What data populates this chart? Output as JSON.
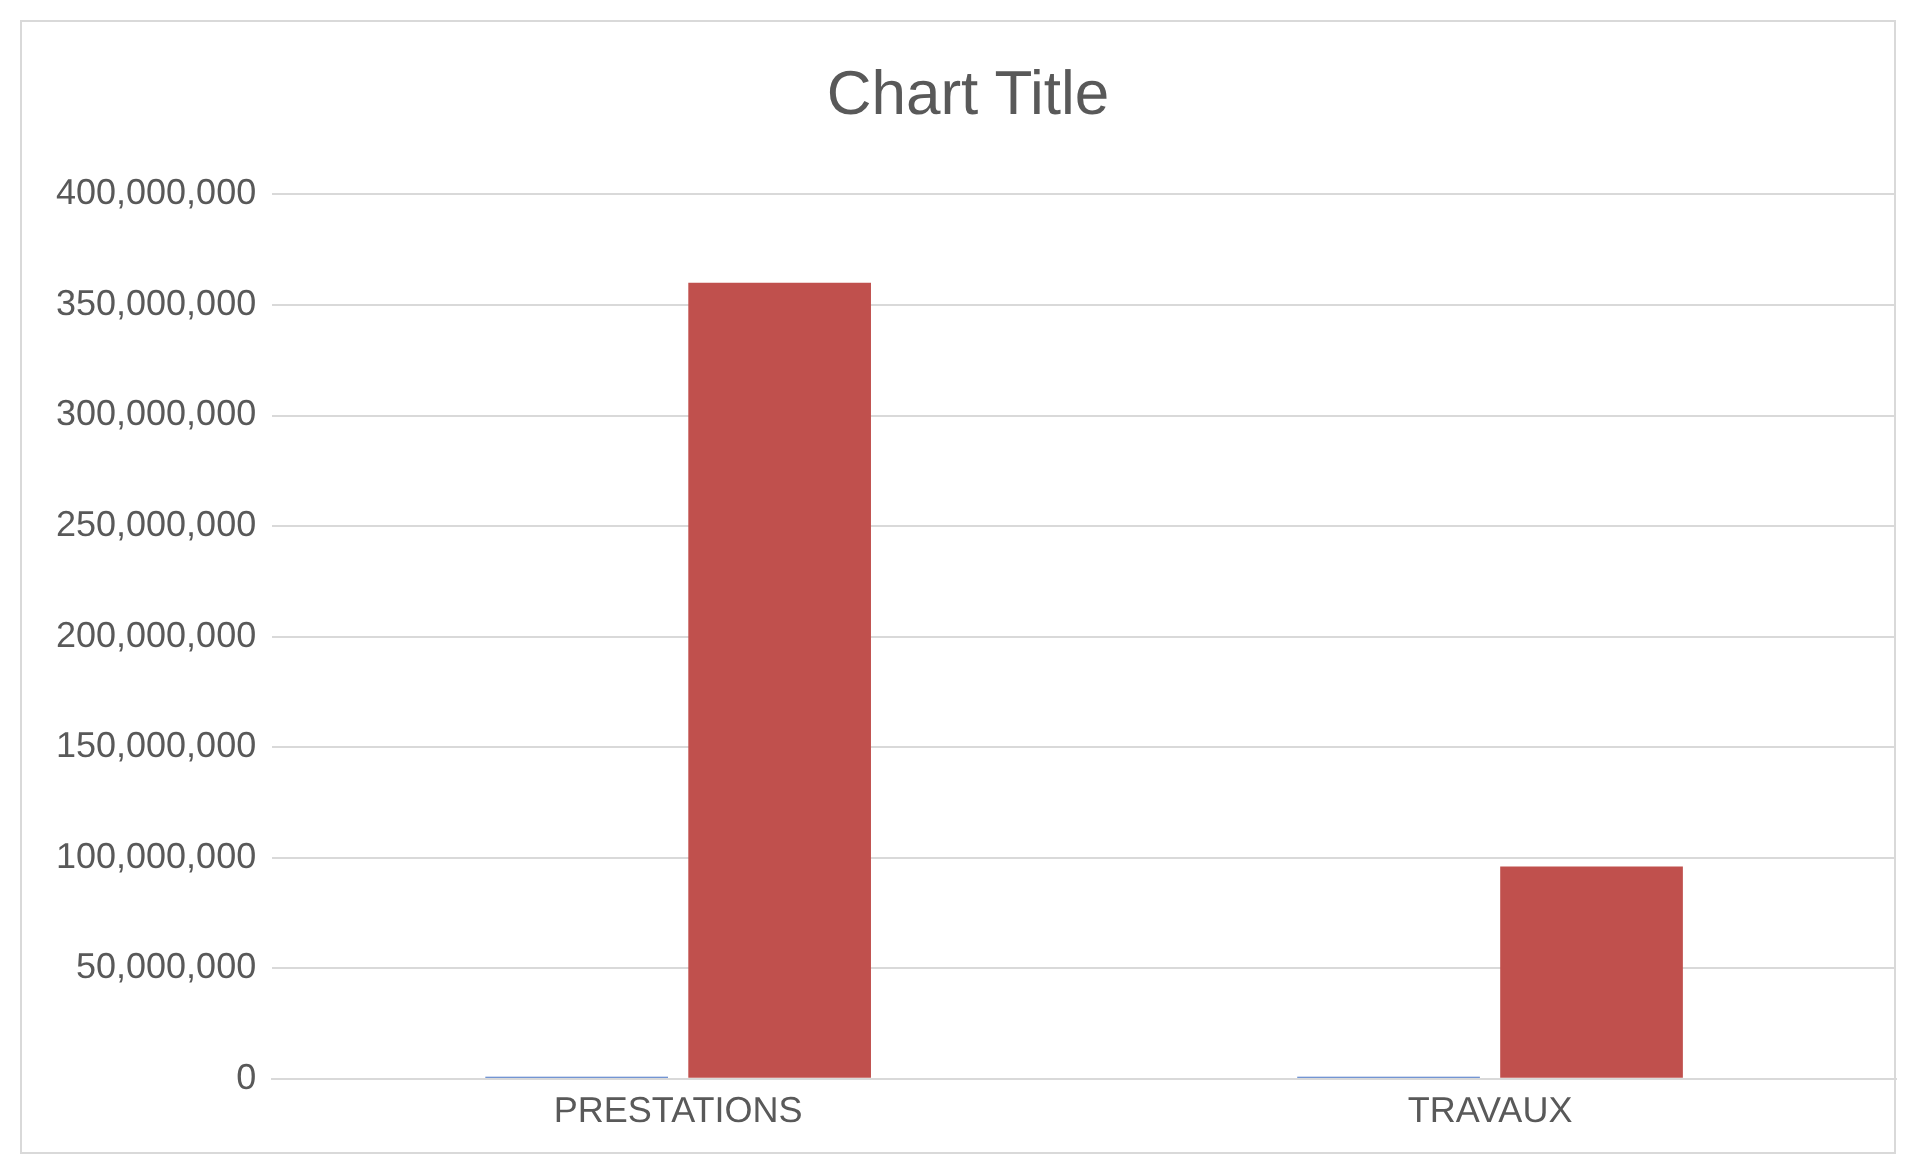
{
  "chart_data": {
    "type": "bar",
    "title": "Chart Title",
    "categories": [
      "PRESTATIONS",
      "TRAVAUX"
    ],
    "series": [
      {
        "color": "#4472c4",
        "values": [
          0,
          0
        ]
      },
      {
        "color": "#c0504d",
        "values": [
          360000000,
          96000000
        ]
      }
    ],
    "ylim": [
      0,
      400000000
    ],
    "yticks": [
      0,
      {
        "value": 50000000,
        "label": "50,000,000"
      },
      {
        "value": 100000000,
        "label": "100,000,000"
      },
      {
        "value": 150000000,
        "label": "150,000,000"
      },
      {
        "value": 200000000,
        "label": "200,000,000"
      },
      {
        "value": 250000000,
        "label": "250,000,000"
      },
      {
        "value": 300000000,
        "label": "300,000,000"
      },
      {
        "value": 350000000,
        "label": "350,000,000"
      },
      {
        "value": 400000000,
        "label": "400,000,000"
      }
    ],
    "grid": "y",
    "legend": false
  }
}
